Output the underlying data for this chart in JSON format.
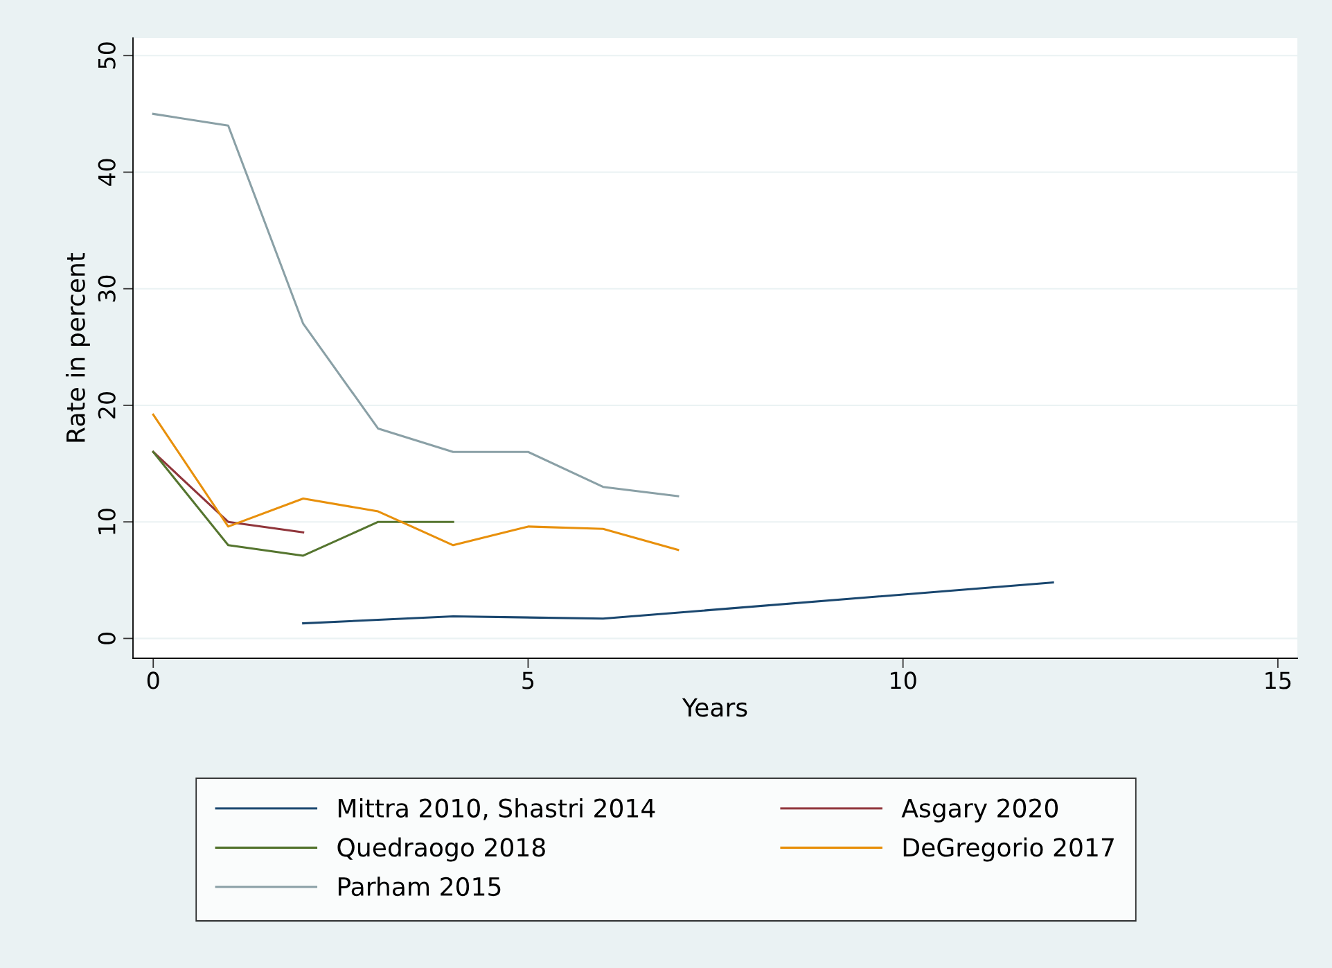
{
  "chart_data": {
    "type": "line",
    "xlabel": "Years",
    "ylabel": "Rate in percent",
    "xlim": [
      -0.27,
      15.26
    ],
    "xticks": [
      0,
      5,
      10,
      15
    ],
    "ylim": [
      -1.7,
      51.5
    ],
    "yticks": [
      0,
      10,
      20,
      30,
      40,
      50
    ],
    "grid": "y",
    "legend": "bottom",
    "marker": "none",
    "line_style": "solid",
    "series": [
      {
        "name": "Mittra 2010, Shastri 2014",
        "color": "#1a476f",
        "x": [
          2,
          4,
          6,
          12
        ],
        "values": [
          1.3,
          1.9,
          1.7,
          4.8
        ]
      },
      {
        "name": "Asgary 2020",
        "color": "#90353b",
        "x": [
          0,
          1,
          2
        ],
        "values": [
          16,
          10,
          9.1
        ]
      },
      {
        "name": "Quedraogo 2018",
        "color": "#55752f",
        "x": [
          0,
          1,
          2,
          3,
          4
        ],
        "values": [
          16,
          8,
          7.1,
          10,
          10
        ]
      },
      {
        "name": "DeGregorio 2017",
        "color": "#e8900c",
        "x": [
          0,
          1,
          2,
          3,
          4,
          5,
          6,
          7
        ],
        "values": [
          19.2,
          9.6,
          12,
          10.9,
          8,
          9.6,
          9.4,
          7.6
        ]
      },
      {
        "name": "Parham 2015",
        "color": "#8aa0a6",
        "x": [
          0,
          1,
          2,
          3,
          4,
          5,
          6,
          7
        ],
        "values": [
          45,
          44,
          27,
          18,
          16,
          16,
          13,
          12.2
        ]
      }
    ]
  }
}
